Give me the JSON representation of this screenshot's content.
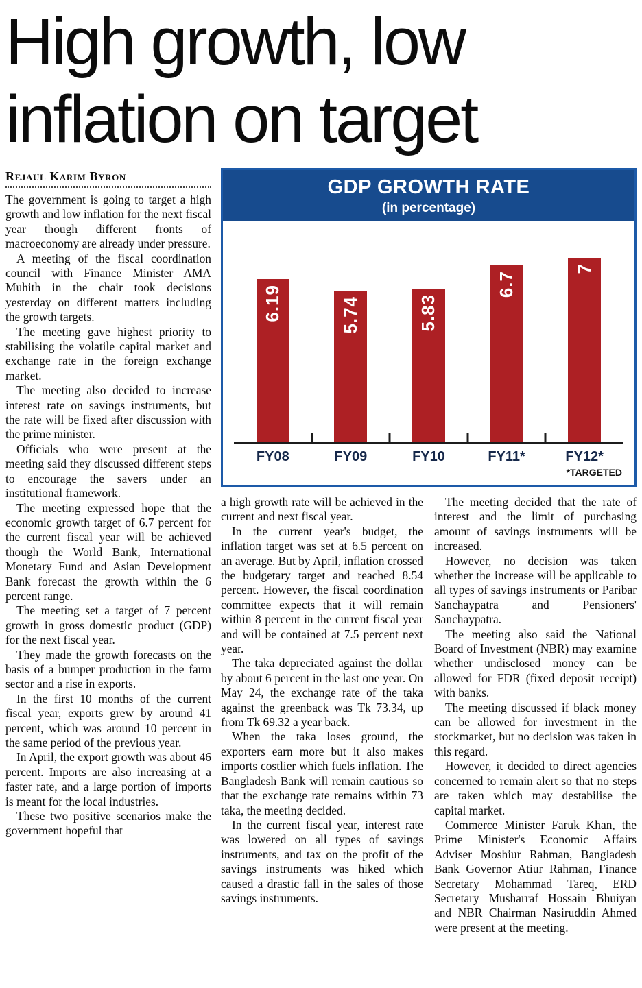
{
  "headline": "High growth, low inflation on target",
  "byline": "Rejaul Karim Byron",
  "article": {
    "col_left": [
      "The government is going to target a high growth and low inflation for the next fiscal year though different fronts of macroeconomy are already under pressure.",
      "A meeting of the fiscal coordination council with Finance Minister AMA Muhith in the chair took decisions yesterday on different matters including the growth targets.",
      "The meeting gave highest priority to stabilising the volatile capital market and exchange rate in the foreign exchange market.",
      "The meeting also decided to increase interest rate on savings instruments, but the rate will be fixed after discussion with the prime minister.",
      "Officials who were present at the meeting said they discussed different steps to encourage the savers under an institutional framework.",
      "The meeting expressed hope that the economic growth target of 6.7 percent for the current fiscal year will be achieved though the World Bank, International Monetary Fund and Asian Development Bank forecast the growth within the 6 percent range.",
      "The meeting set a target of 7 percent growth in gross domestic product (GDP) for the next fiscal year.",
      "They made the growth forecasts on the basis of a bumper production in the farm sector and a rise in exports.",
      "In the first 10 months of the current fiscal year, exports grew by around 41 percent, which was around 10 percent in the same period of the previous year.",
      "In April, the export growth was about 46 percent. Imports are also increasing at a faster rate, and a large portion of imports is meant for the local industries.",
      "These two positive scenarios make the government hopeful that"
    ],
    "col_mid": [
      "a high growth rate will be achieved in the current and next fiscal year.",
      "In the current year's budget, the inflation target was set at 6.5 percent on an average. But by April, inflation crossed the budgetary target and reached 8.54 percent. However, the fiscal coordination committee expects that it will remain within 8 percent in the current fiscal year and will be contained at 7.5 percent next year.",
      "The taka depreciated against the dollar by about 6 percent in the last one year. On May 24, the exchange rate of the taka against the greenback was Tk 73.34, up from Tk 69.32 a year back.",
      "When the taka loses ground, the exporters earn more but it also makes imports costlier which fuels inflation. The Bangladesh Bank will remain cautious so that the exchange rate remains within 73 taka, the meeting decided.",
      "In the current fiscal year, interest rate was lowered on all types of savings instruments, and tax on the profit of the savings instruments was hiked which caused a drastic fall in the sales of those savings instruments."
    ],
    "col_right": [
      "The meeting decided that the rate of interest and the limit of purchasing amount of savings instruments will be increased.",
      "However, no decision was taken whether the increase will be applicable to all types of savings instruments or Paribar Sanchaypatra and Pensioners' Sanchaypatra.",
      "The meeting also said the National Board of Investment (NBR) may examine whether undisclosed money can be allowed for FDR (fixed deposit receipt) with banks.",
      "The meeting discussed if black money can be allowed for investment in the stockmarket, but no decision was taken in this regard.",
      "However, it decided to direct agencies concerned to remain alert so that no steps are taken which may destabilise the capital market.",
      "Commerce Minister Faruk Khan, the Prime Minister's Economic Affairs Adviser Moshiur Rahman, Bangladesh Bank Governor Atiur Rahman, Finance Secretary Mohammad Tareq, ERD Secretary Musharraf Hossain Bhuiyan and NBR Chairman Nasiruddin Ahmed were present at the meeting."
    ]
  },
  "chart": {
    "title": "GDP GROWTH RATE",
    "subtitle": "(in percentage)",
    "footnote": "*TARGETED",
    "colors": {
      "bar": "#ad2024",
      "header_bg": "#174b8e",
      "border": "#1d5aa8",
      "xlabel": "#16284a"
    }
  },
  "chart_data": {
    "type": "bar",
    "categories": [
      "FY08",
      "FY09",
      "FY10",
      "FY11*",
      "FY12*"
    ],
    "values": [
      6.19,
      5.74,
      5.83,
      6.7,
      7
    ],
    "value_labels": [
      "6.19",
      "5.74",
      "5.83",
      "6.7",
      "7"
    ],
    "title": "GDP GROWTH RATE (in percentage)",
    "xlabel": "",
    "ylabel": "",
    "ylim": [
      0,
      7.8
    ],
    "grid": false,
    "legend": "none",
    "annotations": [
      "*TARGETED"
    ]
  }
}
